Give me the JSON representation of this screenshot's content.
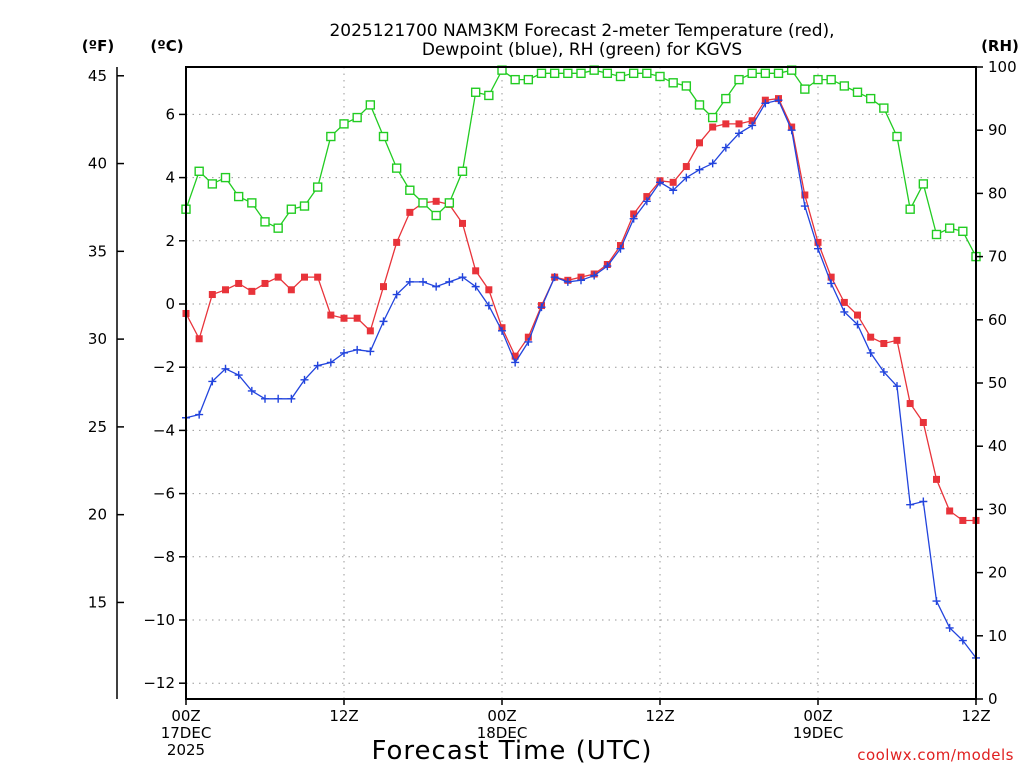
{
  "chart_data": {
    "type": "line",
    "title_line1": "2025121700 NAM3KM Forecast 2-meter Temperature (red),",
    "title_line2": "Dewpoint (blue), RH (green) for KGVS",
    "xlabel": "Forecast Time (UTC)",
    "credit": "coolwx.com/models",
    "unit_labels": {
      "fahrenheit": "(ºF)",
      "celsius": "(ºC)",
      "rh": "(RH)"
    },
    "x_hours_range": [
      0,
      60
    ],
    "x_ticks": [
      {
        "hour": 0,
        "lines": [
          "00Z",
          "17DEC",
          "2025"
        ]
      },
      {
        "hour": 12,
        "lines": [
          "12Z"
        ]
      },
      {
        "hour": 24,
        "lines": [
          "00Z",
          "18DEC"
        ]
      },
      {
        "hour": 36,
        "lines": [
          "12Z"
        ]
      },
      {
        "hour": 48,
        "lines": [
          "00Z",
          "19DEC"
        ]
      },
      {
        "hour": 60,
        "lines": [
          "12Z"
        ]
      }
    ],
    "celsius_axis": {
      "range": [
        -12.5,
        7.5
      ],
      "ticks": [
        "−12",
        "−10",
        "−8",
        "−6",
        "−4",
        "−2",
        "0",
        "2",
        "4",
        "6"
      ],
      "tick_values": [
        -12,
        -10,
        -8,
        -6,
        -4,
        -2,
        0,
        2,
        4,
        6
      ]
    },
    "fahrenheit_axis": {
      "ticks": [
        "15",
        "20",
        "25",
        "30",
        "35",
        "40",
        "45"
      ],
      "tick_values": [
        15,
        20,
        25,
        30,
        35,
        40,
        45
      ]
    },
    "rh_axis": {
      "range": [
        0,
        100
      ],
      "ticks": [
        "0",
        "10",
        "20",
        "30",
        "40",
        "50",
        "60",
        "70",
        "80",
        "90",
        "100"
      ],
      "tick_values": [
        0,
        10,
        20,
        30,
        40,
        50,
        60,
        70,
        80,
        90,
        100
      ]
    },
    "hours": [
      0,
      1,
      2,
      3,
      4,
      5,
      6,
      7,
      8,
      9,
      10,
      11,
      12,
      13,
      14,
      15,
      16,
      17,
      18,
      19,
      20,
      21,
      22,
      23,
      24,
      25,
      26,
      27,
      28,
      29,
      30,
      31,
      32,
      33,
      34,
      35,
      36,
      37,
      38,
      39,
      40,
      41,
      42,
      43,
      44,
      45,
      46,
      47,
      48,
      49,
      50,
      51,
      52,
      53,
      54,
      55,
      56,
      57,
      58,
      59,
      60
    ],
    "series": [
      {
        "name": "Temperature",
        "unit": "C",
        "color": "#e8333a",
        "marker": "filled-square",
        "values": [
          -0.3,
          -1.1,
          0.3,
          0.45,
          0.65,
          0.4,
          0.65,
          0.85,
          0.45,
          0.85,
          0.85,
          -0.35,
          -0.45,
          -0.45,
          -0.85,
          0.55,
          1.95,
          2.9,
          3.2,
          3.25,
          3.15,
          2.55,
          1.05,
          0.45,
          -0.75,
          -1.65,
          -1.05,
          -0.05,
          0.85,
          0.75,
          0.85,
          0.95,
          1.25,
          1.85,
          2.85,
          3.4,
          3.9,
          3.85,
          4.35,
          5.1,
          5.6,
          5.7,
          5.7,
          5.8,
          6.45,
          6.5,
          5.6,
          3.45,
          1.95,
          0.85,
          0.05,
          -0.35,
          -1.05,
          -1.25,
          -1.15,
          -3.15,
          -3.75,
          -5.55,
          -6.55,
          -6.85,
          -6.85
        ]
      },
      {
        "name": "Dewpoint",
        "unit": "C",
        "color": "#2244dd",
        "marker": "plus",
        "values": [
          -3.6,
          -3.5,
          -2.45,
          -2.05,
          -2.25,
          -2.75,
          -3.0,
          -3.0,
          -3.0,
          -2.4,
          -1.95,
          -1.85,
          -1.55,
          -1.45,
          -1.5,
          -0.55,
          0.3,
          0.7,
          0.7,
          0.55,
          0.7,
          0.85,
          0.55,
          -0.05,
          -0.85,
          -1.85,
          -1.2,
          -0.1,
          0.85,
          0.7,
          0.75,
          0.9,
          1.2,
          1.75,
          2.7,
          3.25,
          3.85,
          3.6,
          4.0,
          4.25,
          4.45,
          4.95,
          5.4,
          5.65,
          6.35,
          6.45,
          5.5,
          3.1,
          1.75,
          0.65,
          -0.25,
          -0.65,
          -1.55,
          -2.15,
          -2.6,
          -6.35,
          -6.25,
          -9.4,
          -10.25,
          -10.65,
          -11.2
        ]
      },
      {
        "name": "RH",
        "unit": "%",
        "color": "#22cc22",
        "marker": "open-square",
        "values": [
          77.5,
          83.5,
          81.5,
          82.5,
          79.5,
          78.5,
          75.5,
          74.5,
          77.5,
          78,
          81,
          89,
          91,
          92,
          94,
          89,
          84,
          80.5,
          78.5,
          76.5,
          78.5,
          83.5,
          96,
          95.5,
          99.5,
          98,
          98,
          99,
          99,
          99,
          99,
          99.5,
          99,
          98.5,
          99,
          99,
          98.5,
          97.5,
          97,
          94,
          92,
          95,
          98,
          99,
          99,
          99,
          99.5,
          96.5,
          98,
          98,
          97,
          96,
          95,
          93.5,
          89,
          77.5,
          81.5,
          73.5,
          74.5,
          74,
          70
        ]
      }
    ]
  }
}
